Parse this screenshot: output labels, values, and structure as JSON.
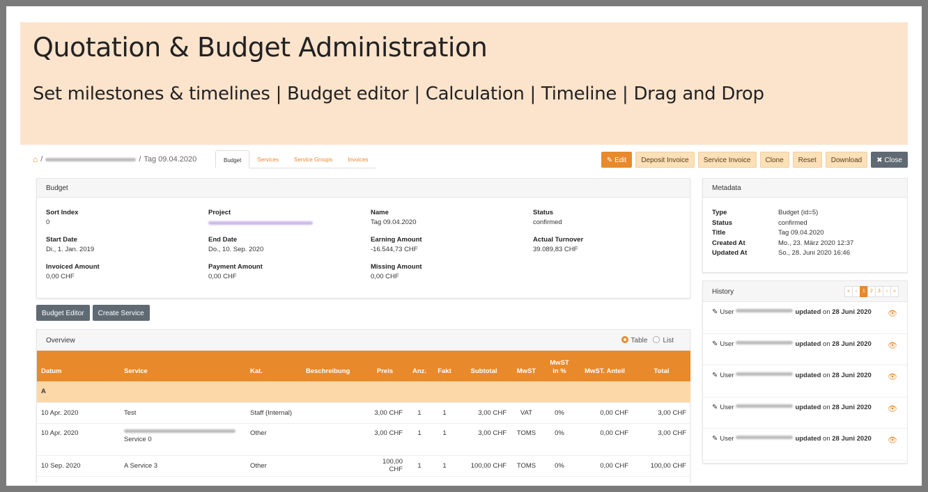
{
  "banner": {
    "title": "Quotation & Budget Administration",
    "subtitle": "Set milestones & timelines | Budget editor | Calculation | Timeline | Drag and Drop"
  },
  "breadcrumb": {
    "sep": "/",
    "current": "Tag 09.04.2020"
  },
  "tabs": [
    "Budget",
    "Services",
    "Service Groups",
    "Invoices"
  ],
  "actions": {
    "edit": "Edit",
    "deposit": "Deposit Invoice",
    "service": "Service Invoice",
    "clone": "Clone",
    "reset": "Reset",
    "download": "Download",
    "close": "Close"
  },
  "budget": {
    "title": "Budget",
    "fields": [
      {
        "label": "Sort Index",
        "value": "0"
      },
      {
        "label": "Project",
        "value": ""
      },
      {
        "label": "Name",
        "value": "Tag 09.04.2020"
      },
      {
        "label": "Status",
        "value": "confirmed"
      },
      {
        "label": "Start Date",
        "value": "Di., 1. Jan. 2019"
      },
      {
        "label": "End Date",
        "value": "Do., 10. Sep. 2020"
      },
      {
        "label": "Earning Amount",
        "value": "-16.544,73 CHF"
      },
      {
        "label": "Actual Turnover",
        "value": "39.089,83 CHF"
      },
      {
        "label": "Invoiced Amount",
        "value": "0,00 CHF"
      },
      {
        "label": "Payment Amount",
        "value": "0,00 CHF"
      },
      {
        "label": "Missing Amount",
        "value": "0,00 CHF"
      }
    ]
  },
  "buttons": {
    "budget_editor": "Budget Editor",
    "create_service": "Create Service"
  },
  "metadata": {
    "title": "Metadata",
    "rows": [
      {
        "k": "Type",
        "v": "Budget (id=5)"
      },
      {
        "k": "Status",
        "v": "confirmed"
      },
      {
        "k": "Title",
        "v": "Tag 09.04.2020"
      },
      {
        "k": "Created At",
        "v": "Mo., 23. März 2020 12:37"
      },
      {
        "k": "Updated At",
        "v": "So., 28. Juni 2020 16:46"
      }
    ]
  },
  "overview": {
    "title": "Overview",
    "toggle_table": "Table",
    "toggle_list": "List",
    "columns": [
      "Datum",
      "Service",
      "Kat.",
      "Beschreibung",
      "Preis",
      "Anz.",
      "Fakt",
      "Subtotal",
      "MwST",
      "MwST in %",
      "MwST. Anteil",
      "Total"
    ],
    "group": "A",
    "rows": [
      [
        "10 Apr. 2020",
        "Test",
        "Staff (Internal)",
        "",
        "3,00 CHF",
        "1",
        "1",
        "3,00 CHF",
        "VAT",
        "0%",
        "0,00 CHF",
        "3,00 CHF"
      ],
      [
        "10 Apr. 2020",
        "Service 0",
        "Other",
        "",
        "3,00 CHF",
        "1",
        "1",
        "3,00 CHF",
        "TOMS",
        "0%",
        "0,00 CHF",
        "3,00 CHF"
      ],
      [
        "10 Sep. 2020",
        "A Service 3",
        "Other",
        "",
        "100,00 CHF",
        "1",
        "1",
        "100,00 CHF",
        "TOMS",
        "0%",
        "0,00 CHF",
        "100,00 CHF"
      ]
    ]
  },
  "history": {
    "title": "History",
    "pages": [
      "«",
      "‹",
      "1",
      "2",
      "3",
      "›",
      "»"
    ],
    "items": [
      {
        "prefix": "User",
        "action": "updated",
        "on": "on",
        "date": "28 Juni 2020"
      },
      {
        "prefix": "User",
        "action": "updated",
        "on": "on",
        "date": "28 Juni 2020"
      },
      {
        "prefix": "User",
        "action": "updated",
        "on": "on",
        "date": "28 Juni 2020"
      },
      {
        "prefix": "User",
        "action": "updated",
        "on": "on",
        "date": "28 Juni 2020"
      },
      {
        "prefix": "User",
        "action": "updated",
        "on": "on",
        "date": "28 Juni 2020"
      }
    ]
  },
  "colors": {
    "accent": "#e8892b",
    "banner": "#fce3cc",
    "group_row": "#fcd8a8"
  }
}
